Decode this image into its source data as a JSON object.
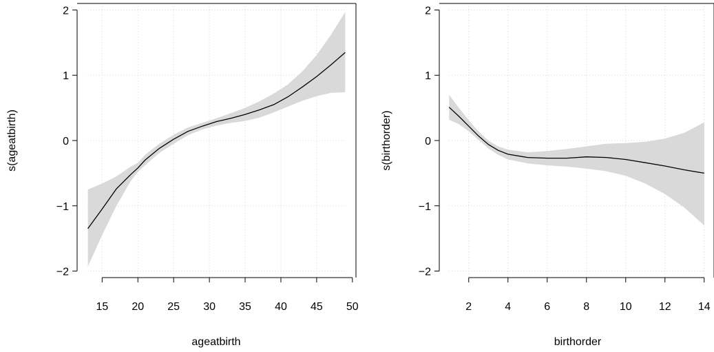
{
  "chart_data": [
    {
      "type": "line",
      "xlabel": "ageatbirth",
      "ylabel": "s(ageatbirth)",
      "xlim": [
        11.5,
        50.5
      ],
      "ylim": [
        -2.1,
        2.1
      ],
      "x_ticks": [
        15,
        20,
        25,
        30,
        35,
        40,
        45,
        50
      ],
      "x_tick_labels": [
        "15",
        "20",
        "25",
        "30",
        "35",
        "40",
        "45",
        "50"
      ],
      "y_ticks": [
        -2,
        -1,
        0,
        1,
        2
      ],
      "y_tick_labels": [
        "−2",
        "−1",
        "0",
        "1",
        "2"
      ],
      "grid": true,
      "colors": {
        "line": "#000000",
        "band": "#d9d9d9",
        "grid": "#d3d3d3"
      },
      "series": [
        {
          "x": [
            13,
            15,
            17,
            19,
            20,
            21,
            23,
            25,
            27,
            29,
            31,
            33,
            35,
            37,
            39,
            41,
            43,
            45,
            47,
            49
          ],
          "y": [
            -1.35,
            -1.05,
            -0.74,
            -0.52,
            -0.42,
            -0.3,
            -0.12,
            0.02,
            0.14,
            0.22,
            0.29,
            0.34,
            0.4,
            0.47,
            0.55,
            0.67,
            0.82,
            0.98,
            1.16,
            1.35
          ],
          "lower": [
            -1.93,
            -1.45,
            -1.0,
            -0.62,
            -0.48,
            -0.38,
            -0.19,
            -0.05,
            0.08,
            0.17,
            0.23,
            0.27,
            0.3,
            0.35,
            0.43,
            0.52,
            0.61,
            0.68,
            0.73,
            0.74
          ],
          "upper": [
            -0.75,
            -0.66,
            -0.55,
            -0.4,
            -0.34,
            -0.22,
            -0.05,
            0.09,
            0.2,
            0.27,
            0.34,
            0.42,
            0.5,
            0.6,
            0.72,
            0.86,
            1.06,
            1.31,
            1.62,
            1.97
          ]
        }
      ]
    },
    {
      "type": "line",
      "xlabel": "birthorder",
      "ylabel": "s(birthorder)",
      "xlim": [
        0.5,
        14.5
      ],
      "ylim": [
        -2.1,
        2.1
      ],
      "x_ticks": [
        2,
        4,
        6,
        8,
        10,
        12,
        14
      ],
      "x_tick_labels": [
        "2",
        "4",
        "6",
        "8",
        "10",
        "12",
        "14"
      ],
      "y_ticks": [
        -2,
        -1,
        0,
        1,
        2
      ],
      "y_tick_labels": [
        "−2",
        "−1",
        "0",
        "1",
        "2"
      ],
      "grid": true,
      "colors": {
        "line": "#000000",
        "band": "#d9d9d9",
        "grid": "#d3d3d3"
      },
      "series": [
        {
          "x": [
            1,
            1.5,
            2,
            2.5,
            3,
            3.5,
            4,
            5,
            6,
            7,
            8,
            9,
            10,
            11,
            12,
            13,
            14
          ],
          "y": [
            0.51,
            0.37,
            0.22,
            0.07,
            -0.06,
            -0.15,
            -0.21,
            -0.26,
            -0.27,
            -0.27,
            -0.25,
            -0.26,
            -0.29,
            -0.34,
            -0.39,
            -0.45,
            -0.5
          ],
          "lower": [
            0.32,
            0.25,
            0.14,
            0.01,
            -0.12,
            -0.22,
            -0.29,
            -0.35,
            -0.38,
            -0.4,
            -0.43,
            -0.47,
            -0.54,
            -0.66,
            -0.82,
            -1.03,
            -1.3
          ],
          "upper": [
            0.7,
            0.5,
            0.31,
            0.14,
            0.0,
            -0.09,
            -0.14,
            -0.18,
            -0.16,
            -0.13,
            -0.09,
            -0.05,
            -0.04,
            -0.02,
            0.03,
            0.12,
            0.28
          ]
        }
      ]
    }
  ]
}
